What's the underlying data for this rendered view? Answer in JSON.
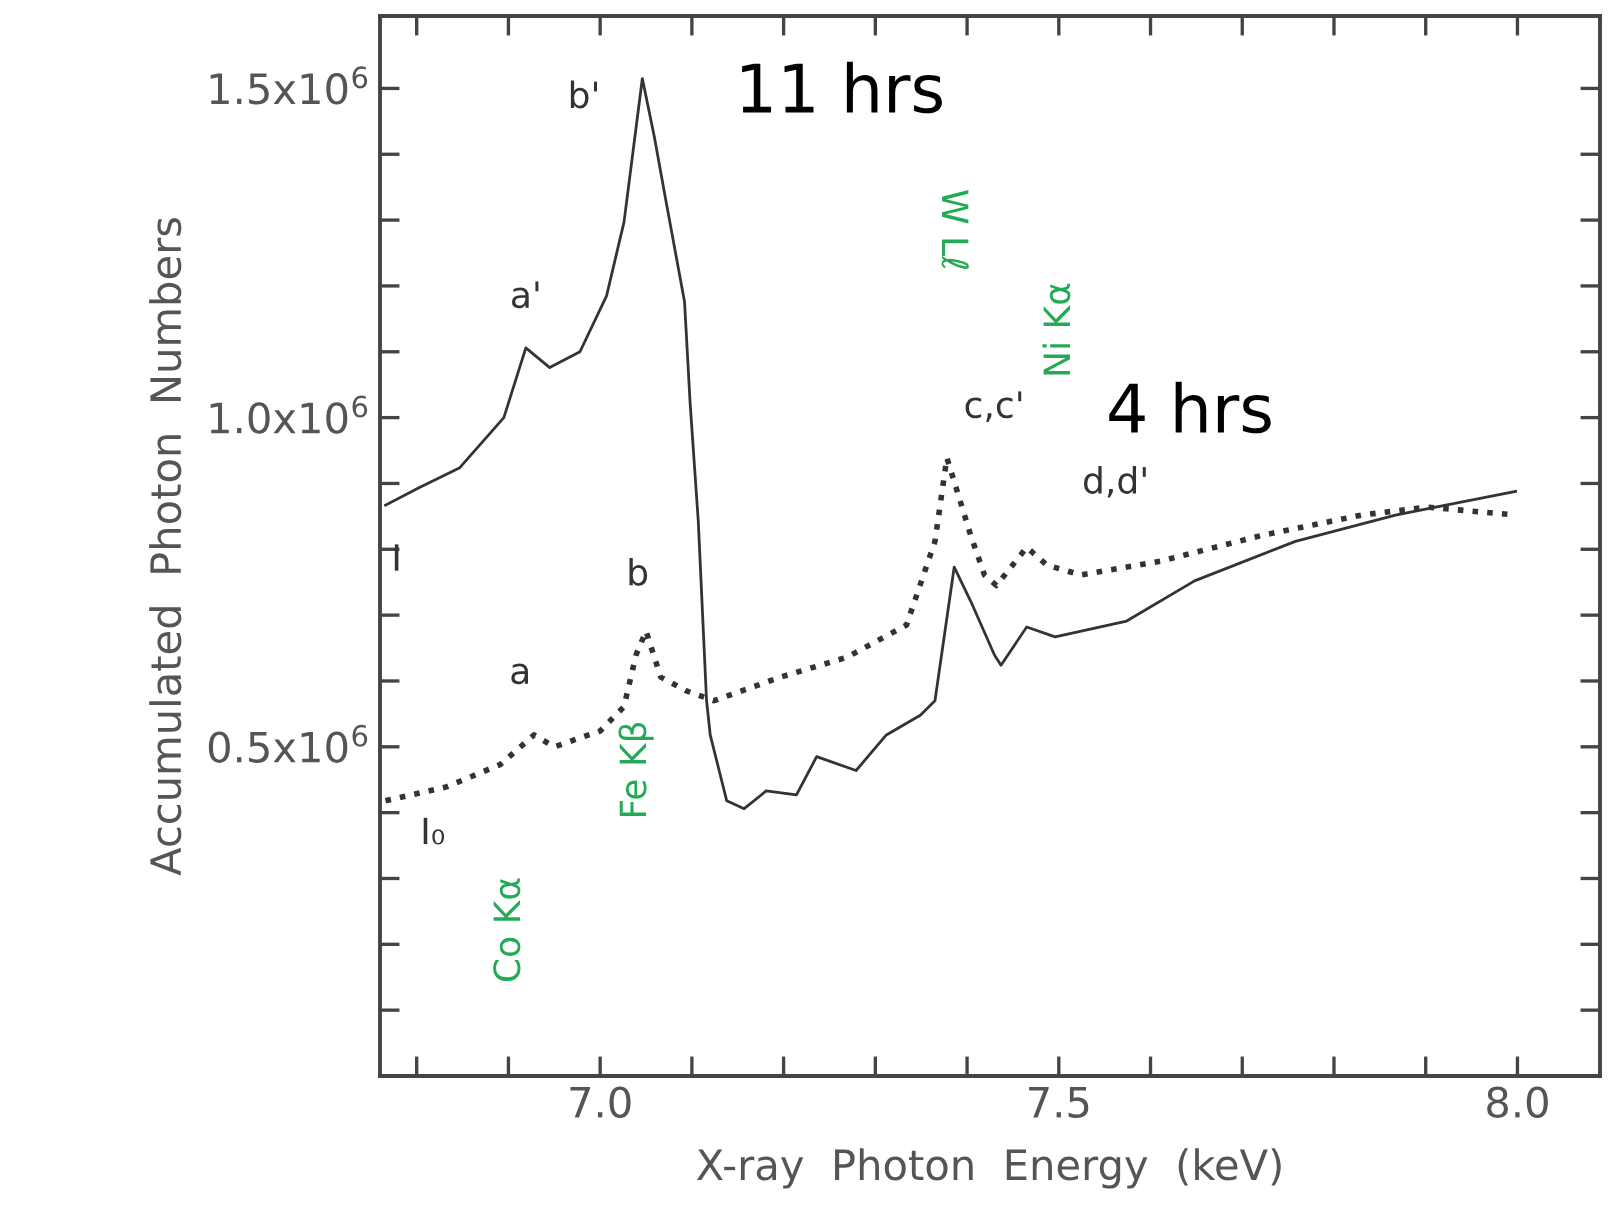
{
  "chart_data": {
    "type": "line",
    "xlabel": "X-ray  Photon  Energy  (keV)",
    "ylabel": "Accumulated  Photon  Numbers",
    "xlim": [
      6.76,
      8.09
    ],
    "ylim": [
      0,
      1610000
    ],
    "xticks": [
      {
        "value": 6.8,
        "label": null
      },
      {
        "value": 6.9,
        "label": null
      },
      {
        "value": 7.0,
        "label": "7.0"
      },
      {
        "value": 7.1,
        "label": null
      },
      {
        "value": 7.2,
        "label": null
      },
      {
        "value": 7.3,
        "label": null
      },
      {
        "value": 7.4,
        "label": null
      },
      7.5,
      {
        "value": 7.6,
        "label": null
      },
      {
        "value": 7.7,
        "label": null
      },
      {
        "value": 7.8,
        "label": null
      },
      {
        "value": 7.9,
        "label": null
      },
      {
        "value": 8.0,
        "label": "8.0"
      }
    ],
    "yticks": [
      {
        "value": 100000,
        "label": null
      },
      {
        "value": 200000,
        "label": null
      },
      {
        "value": 300000,
        "label": null
      },
      {
        "value": 400000,
        "label": null
      },
      {
        "value": 500000,
        "label": "0.5x10$^{6}$"
      },
      {
        "value": 600000,
        "label": null
      },
      {
        "value": 700000,
        "label": null
      },
      {
        "value": 800000,
        "label": null
      },
      {
        "value": 900000,
        "label": null
      },
      {
        "value": 1000000,
        "label": "1.0x10$^{6}$"
      },
      {
        "value": 1100000,
        "label": null
      },
      {
        "value": 1200000,
        "label": null
      },
      {
        "value": 1300000,
        "label": null
      },
      {
        "value": 1400000,
        "label": null
      },
      {
        "value": 1500000,
        "label": "1.5x10$^{6}$"
      }
    ],
    "series": [
      {
        "name": "I",
        "color": "#333333",
        "line_style": "solid",
        "x": [
          6.766,
          6.803,
          6.847,
          6.895,
          6.919,
          6.945,
          6.978,
          7.007,
          7.026,
          7.046,
          7.059,
          7.072,
          7.092,
          7.098,
          7.107,
          7.116,
          7.12,
          7.138,
          7.157,
          7.181,
          7.214,
          7.236,
          7.279,
          7.312,
          7.349,
          7.365,
          7.386,
          7.404,
          7.43,
          7.437,
          7.465,
          7.496,
          7.574,
          7.648,
          7.758,
          7.867,
          7.998
        ],
        "values": [
          867000,
          894000,
          924000,
          1000000,
          1106000,
          1076000,
          1100000,
          1185000,
          1297000,
          1515000,
          1427000,
          1327000,
          1176000,
          1024000,
          842000,
          570000,
          518000,
          418000,
          406000,
          433000,
          427000,
          485000,
          464000,
          518000,
          548000,
          570000,
          773000,
          721000,
          639000,
          624000,
          682000,
          667000,
          691000,
          752000,
          812000,
          852000,
          888000
        ]
      },
      {
        "name": "I₀",
        "color": "#333333",
        "line_style": "dotted",
        "x": [
          6.766,
          6.832,
          6.891,
          6.928,
          6.95,
          7.0,
          7.026,
          7.039,
          7.05,
          7.066,
          7.094,
          7.124,
          7.197,
          7.269,
          7.334,
          7.365,
          7.378,
          7.404,
          7.419,
          7.432,
          7.465,
          7.487,
          7.524,
          7.611,
          7.721,
          7.83,
          7.902,
          7.998
        ],
        "values": [
          418000,
          439000,
          473000,
          518000,
          500000,
          524000,
          561000,
          639000,
          676000,
          606000,
          585000,
          570000,
          606000,
          636000,
          685000,
          812000,
          939000,
          821000,
          761000,
          745000,
          803000,
          776000,
          761000,
          782000,
          821000,
          852000,
          864000,
          852000
        ]
      }
    ],
    "annotations": [
      {
        "text": "a'",
        "x": 6.919,
        "y": 1106000
      },
      {
        "text": "b'",
        "x": 7.046,
        "y": 1515000
      },
      {
        "text": "a",
        "x": 6.928,
        "y": 518000
      },
      {
        "text": "b",
        "x": 7.05,
        "y": 676000
      },
      {
        "text": "c,c'",
        "x": 7.378,
        "y": 939000
      },
      {
        "text": "d,d'",
        "x": 7.465,
        "y": 803000
      },
      "11 hrs",
      "4 hrs",
      "Co Kα",
      "Fe Kβ",
      "W Lℓ",
      "Ni Kα"
    ]
  }
}
